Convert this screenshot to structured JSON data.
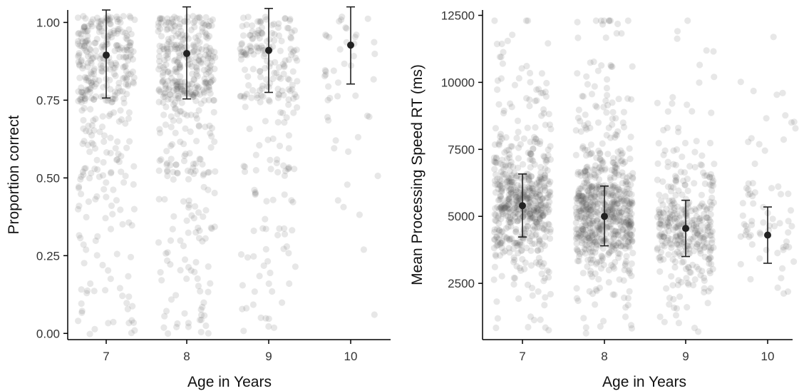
{
  "chart_data": [
    {
      "type": "scatter",
      "subtype": "jittered strip plot with mean and error bars",
      "title": "",
      "xlabel": "Age in Years",
      "ylabel": "Proportion correct",
      "categories": [
        "7",
        "8",
        "9",
        "10"
      ],
      "ylim": [
        -0.02,
        1.04
      ],
      "yticks": [
        0.0,
        0.25,
        0.5,
        0.75,
        1.0
      ],
      "ytick_labels": [
        "0.00",
        "0.25",
        "0.50",
        "0.75",
        "1.00"
      ],
      "grid": false,
      "legend": "none",
      "point_color": "#555555",
      "summary_color": "#222222",
      "series": [
        {
          "mean": [
            0.895,
            0.9,
            0.91,
            0.927
          ],
          "lower": [
            0.757,
            0.754,
            0.775,
            0.802
          ],
          "upper": [
            1.04,
            1.05,
            1.045,
            1.05
          ]
        }
      ],
      "density": [
        1.0,
        1.15,
        0.6,
        0.12
      ],
      "value_profile": "ceiling"
    },
    {
      "type": "scatter",
      "subtype": "jittered strip plot with mean and error bars",
      "title": "",
      "xlabel": "Age in Years",
      "ylabel": "Mean Processing Speed RT (ms)",
      "categories": [
        "7",
        "8",
        "9",
        "10"
      ],
      "ylim": [
        400,
        12700
      ],
      "yticks": [
        2500,
        5000,
        7500,
        10000,
        12500
      ],
      "ytick_labels": [
        "2500",
        "5000",
        "7500",
        "10000",
        "12500"
      ],
      "grid": false,
      "legend": "none",
      "point_color": "#555555",
      "summary_color": "#222222",
      "series": [
        {
          "mean": [
            5400,
            5000,
            4550,
            4300
          ],
          "lower": [
            4230,
            3900,
            3500,
            3250
          ],
          "upper": [
            6580,
            6130,
            5600,
            5350
          ]
        }
      ],
      "density": [
        1.0,
        1.15,
        0.6,
        0.12
      ],
      "value_profile": "right-skewed"
    }
  ]
}
